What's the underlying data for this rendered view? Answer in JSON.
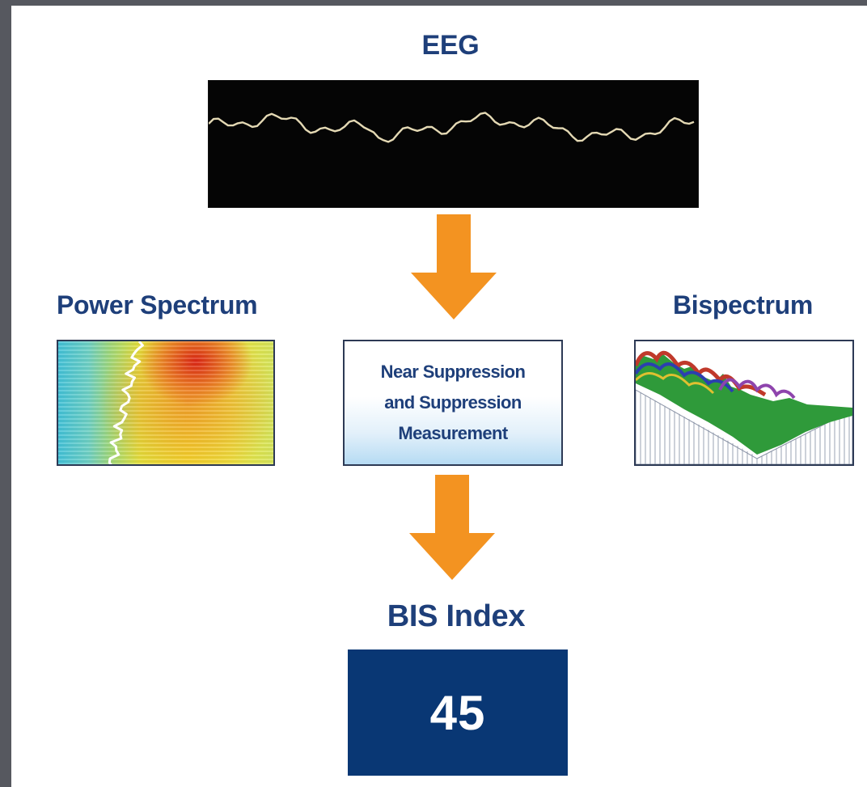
{
  "eeg": {
    "title": "EEG"
  },
  "power_spectrum": {
    "title": "Power Spectrum"
  },
  "bispectrum": {
    "title": "Bispectrum"
  },
  "suppression": {
    "line1": "Near Suppression",
    "line2": "and Suppression",
    "line3": "Measurement"
  },
  "bis_index": {
    "title": "BIS Index",
    "value": "45"
  },
  "colors": {
    "heading": "#1e3f7a",
    "arrow": "#f39321",
    "bis_box": "#093774",
    "eeg_trace": "#e4d9b4",
    "background_frame": "#56585f"
  },
  "icons": {
    "flow_arrow": "down-arrow-icon",
    "eeg_trace": "eeg-waveform",
    "power_spectrum": "spectrogram-heatmap",
    "bispectrum": "3d-surface-plot"
  }
}
